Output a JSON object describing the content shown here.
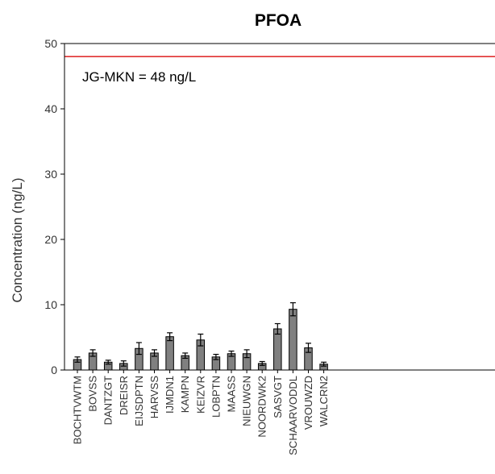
{
  "chart_data": {
    "type": "bar",
    "title": "PFOA",
    "ylabel": "Concentration (ng/L)",
    "xlabel": "",
    "ylim": [
      0,
      50
    ],
    "yticks": [
      0,
      10,
      20,
      30,
      40,
      50
    ],
    "grid": false,
    "categories": [
      "BOCHTVWTM",
      "BOVSS",
      "DANTZGT",
      "DREISR",
      "EIJSDPTN",
      "HARVSS",
      "IJMDN1",
      "KAMPN",
      "KEIZVR",
      "LOBPTN",
      "MAASS",
      "NIEUWGN",
      "NOORDWK2",
      "SASVGT",
      "SCHAARVODDL",
      "VROUWZD",
      "WALCRN2"
    ],
    "values": [
      1.6,
      2.6,
      1.2,
      1.0,
      3.3,
      2.6,
      5.1,
      2.2,
      4.6,
      2.0,
      2.5,
      2.5,
      1.0,
      6.3,
      9.3,
      3.4,
      0.9
    ],
    "errors": [
      0.4,
      0.5,
      0.3,
      0.4,
      0.9,
      0.5,
      0.6,
      0.4,
      0.9,
      0.4,
      0.4,
      0.6,
      0.3,
      0.8,
      1.0,
      0.7,
      0.3
    ],
    "bar_color": "#808080",
    "reference_line": {
      "value": 48,
      "color": "#e03030",
      "label": "JG-MKN = 48 ng/L"
    }
  }
}
